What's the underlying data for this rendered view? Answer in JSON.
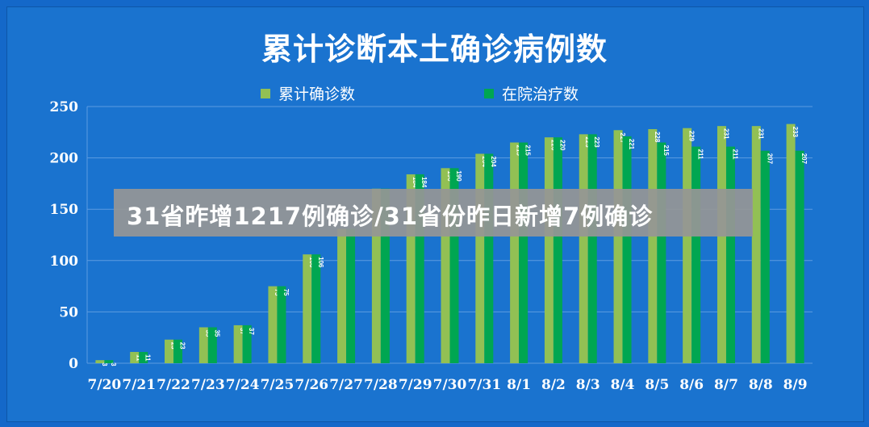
{
  "chart_data": {
    "type": "bar",
    "title": "累计诊断本土确诊病例数",
    "categories": [
      "7/20",
      "7/21",
      "7/22",
      "7/23",
      "7/24",
      "7/25",
      "7/26",
      "7/27",
      "7/28",
      "7/29",
      "7/30",
      "7/31",
      "8/1",
      "8/2",
      "8/3",
      "8/4",
      "8/5",
      "8/6",
      "8/7",
      "8/8",
      "8/9"
    ],
    "series": [
      {
        "name": "累计确诊数",
        "color": "#92c054",
        "values": [
          3,
          11,
          23,
          35,
          37,
          75,
          106,
          131,
          170,
          184,
          190,
          204,
          215,
          220,
          223,
          227,
          228,
          229,
          231,
          231,
          233
        ]
      },
      {
        "name": "在院治疗数",
        "color": "#00a651",
        "values": [
          3,
          11,
          23,
          35,
          37,
          75,
          106,
          131,
          170,
          184,
          190,
          204,
          215,
          220,
          223,
          221,
          215,
          211,
          211,
          207,
          207
        ]
      }
    ],
    "bar_labels": [
      {
        "a": "3",
        "b": "3"
      },
      {
        "a": "11",
        "b": "11"
      },
      {
        "a": "23",
        "b": "23"
      },
      {
        "a": "35",
        "b": "35"
      },
      {
        "a": "37",
        "b": "37"
      },
      {
        "a": "75",
        "b": "75"
      },
      {
        "a": "106",
        "b": "106"
      },
      {
        "a": "",
        "b": ""
      },
      {
        "a": "",
        "b": ""
      },
      {
        "a": "184",
        "b": "184"
      },
      {
        "a": "190",
        "b": "190"
      },
      {
        "a": "204",
        "b": "204"
      },
      {
        "a": "215",
        "b": "215"
      },
      {
        "a": "220",
        "b": "220"
      },
      {
        "a": "223",
        "b": "223"
      },
      {
        "a": "227",
        "b": "221"
      },
      {
        "a": "228",
        "b": "215"
      },
      {
        "a": "229",
        "b": "211"
      },
      {
        "a": "231",
        "b": "211"
      },
      {
        "a": "231",
        "b": "207"
      },
      {
        "a": "233",
        "b": "207"
      }
    ],
    "ylim": [
      0,
      250
    ],
    "yticks": [
      0,
      50,
      100,
      150,
      200,
      250
    ],
    "grid": true,
    "legend_position": "top"
  },
  "overlay": {
    "caption": "31省昨增1217例确诊/31省份昨日新增7例确诊"
  },
  "colors": {
    "background": "#1a73cf",
    "series1": "#92c054",
    "series2": "#00a651",
    "grid": "#5c9be0"
  }
}
